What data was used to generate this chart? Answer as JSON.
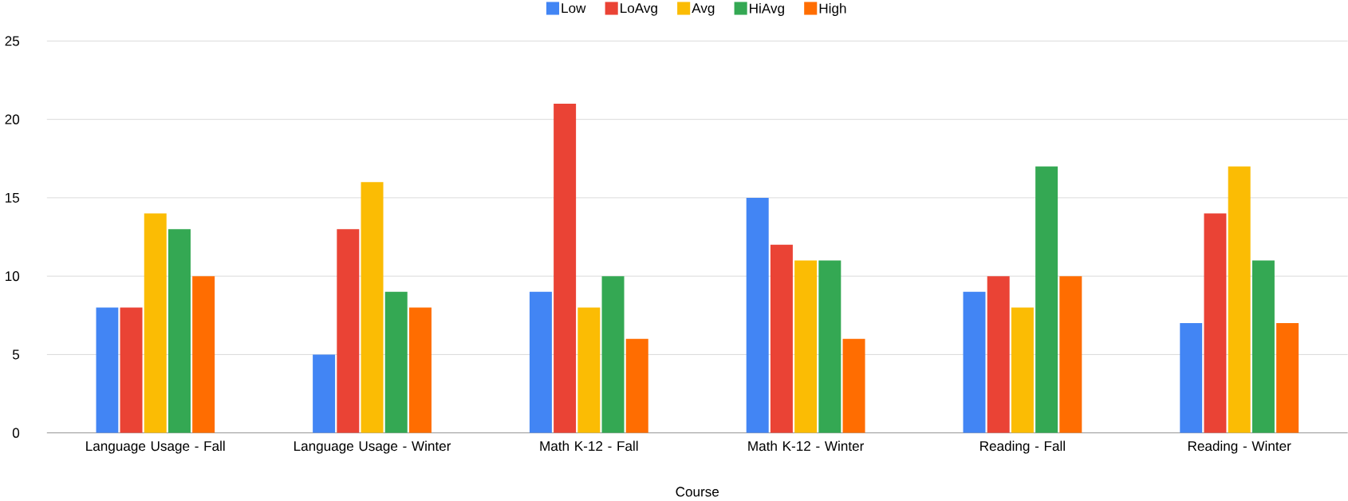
{
  "chart_data": {
    "type": "bar",
    "xlabel": "Course",
    "categories": [
      "Language Usage - Fall",
      "Language Usage - Winter",
      "Math K-12 - Fall",
      "Math K-12 - Winter",
      "Reading - Fall",
      "Reading - Winter"
    ],
    "series": [
      {
        "name": "Low",
        "color": "#4285f4",
        "values": [
          8,
          5,
          9,
          15,
          9,
          7
        ]
      },
      {
        "name": "LoAvg",
        "color": "#ea4335",
        "values": [
          8,
          13,
          21,
          12,
          10,
          14
        ]
      },
      {
        "name": "Avg",
        "color": "#fbbc04",
        "values": [
          14,
          16,
          8,
          11,
          8,
          17
        ]
      },
      {
        "name": "HiAvg",
        "color": "#34a853",
        "values": [
          13,
          9,
          10,
          11,
          17,
          11
        ]
      },
      {
        "name": "High",
        "color": "#ff6d01",
        "values": [
          10,
          8,
          6,
          6,
          10,
          7
        ]
      }
    ],
    "ylim": [
      0,
      25
    ],
    "yticks": [
      0,
      5,
      10,
      15,
      20,
      25
    ],
    "grid": "y",
    "legend": "top"
  }
}
